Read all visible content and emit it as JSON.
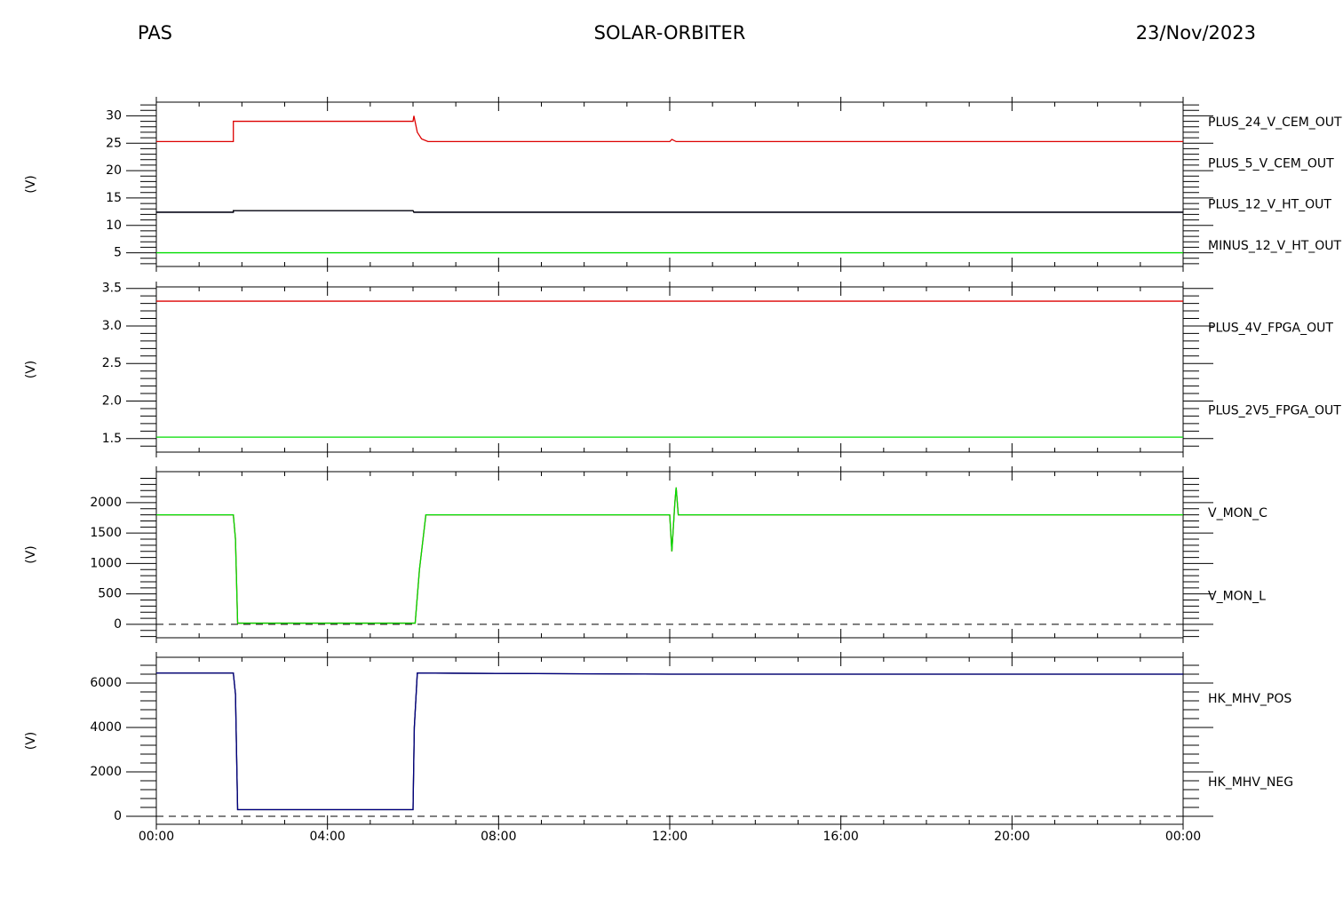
{
  "header": {
    "left": "PAS",
    "center": "SOLAR-ORBITER",
    "right": "23/Nov/2023"
  },
  "chart_data": [
    {
      "type": "line",
      "ylabel": "(V)",
      "xlim": [
        0,
        24
      ],
      "ylim": [
        2.5,
        32.5
      ],
      "yticks": [
        5,
        10,
        15,
        20,
        25,
        30
      ],
      "x": [
        0,
        1.8,
        1.8,
        6.0,
        6.02,
        6.1,
        6.2,
        6.35,
        12.0,
        12.05,
        12.15,
        24
      ],
      "series": [
        {
          "name": "PLUS_24_V_CEM_OUT",
          "color": "#dd0000",
          "values": [
            25.3,
            25.3,
            29.0,
            29.0,
            30.0,
            27.0,
            25.8,
            25.3,
            25.3,
            25.7,
            25.3,
            25.3
          ]
        },
        {
          "name": "PLUS_5_V_CEM_OUT",
          "color": "#00dd00",
          "values": [
            5,
            5,
            5,
            5,
            5,
            5,
            5,
            5,
            5,
            5,
            5,
            5
          ]
        },
        {
          "name": "PLUS_12_V_HT_OUT",
          "color": "#000080",
          "values": [
            12.4,
            12.4,
            12.7,
            12.7,
            12.4,
            12.4,
            12.4,
            12.4,
            12.4,
            12.4,
            12.4,
            12.4
          ]
        },
        {
          "name": "MINUS_12_V_HT_OUT",
          "color": "#000000",
          "values": [
            12.4,
            12.4,
            12.7,
            12.7,
            12.4,
            12.4,
            12.4,
            12.4,
            12.4,
            12.4,
            12.4,
            12.4
          ]
        }
      ]
    },
    {
      "type": "line",
      "ylabel": "(V)",
      "xlim": [
        0,
        24
      ],
      "ylim": [
        1.32,
        3.52
      ],
      "yticks": [
        1.5,
        {
          "value": 2,
          "label": "2.0"
        },
        2.5,
        {
          "value": 3,
          "label": "3.0"
        },
        3.5
      ],
      "x": [
        0,
        24
      ],
      "series": [
        {
          "name": "PLUS_4V_FPGA_OUT",
          "color": "#dd0000",
          "values": [
            3.33,
            3.33
          ]
        },
        {
          "name": "PLUS_2V5_FPGA_OUT",
          "color": "#00dd00",
          "values": [
            1.52,
            1.52
          ]
        }
      ]
    },
    {
      "type": "line",
      "ylabel": "(V)",
      "xlim": [
        0,
        24
      ],
      "ylim": [
        -220,
        2510
      ],
      "yticks": [
        0,
        500,
        1000,
        1500,
        2000
      ],
      "zero_line": true,
      "x": [
        0,
        1.8,
        1.85,
        1.9,
        6.05,
        6.15,
        6.3,
        12.0,
        12.05,
        12.12,
        12.15,
        12.2,
        24
      ],
      "series": [
        {
          "name": "V_MON_C",
          "color": "#dd0000",
          "values": [
            1800,
            1800,
            1400,
            20,
            20,
            900,
            1800,
            1800,
            1200,
            2000,
            2250,
            1800,
            1800
          ]
        },
        {
          "name": "V_MON_L",
          "color": "#00dd00",
          "values": [
            1800,
            1800,
            1400,
            20,
            20,
            900,
            1800,
            1800,
            1200,
            2000,
            2250,
            1800,
            1800
          ]
        }
      ]
    },
    {
      "type": "line",
      "ylabel": "(V)",
      "xlim": [
        0,
        24
      ],
      "ylim": [
        -360,
        7160
      ],
      "yticks": [
        0,
        2000,
        4000,
        6000
      ],
      "zero_line": true,
      "xticks": [
        {
          "value": 0,
          "label": "00:00"
        },
        {
          "value": 4,
          "label": "04:00"
        },
        {
          "value": 8,
          "label": "08:00"
        },
        {
          "value": 12,
          "label": "12:00"
        },
        {
          "value": 16,
          "label": "16:00"
        },
        {
          "value": 20,
          "label": "20:00"
        },
        {
          "value": 24,
          "label": "00:00"
        }
      ],
      "x": [
        0,
        1.8,
        1.85,
        1.9,
        6.0,
        6.03,
        6.1,
        12.0,
        24
      ],
      "series": [
        {
          "name": "HK_MHV_POS",
          "color": "#000000",
          "values": [
            6450,
            6450,
            5500,
            300,
            300,
            4000,
            6450,
            6400,
            6400
          ]
        },
        {
          "name": "HK_MHV_NEG",
          "color": "#000080",
          "values": [
            6450,
            6450,
            5500,
            300,
            300,
            4000,
            6450,
            6400,
            6400
          ]
        }
      ]
    }
  ]
}
